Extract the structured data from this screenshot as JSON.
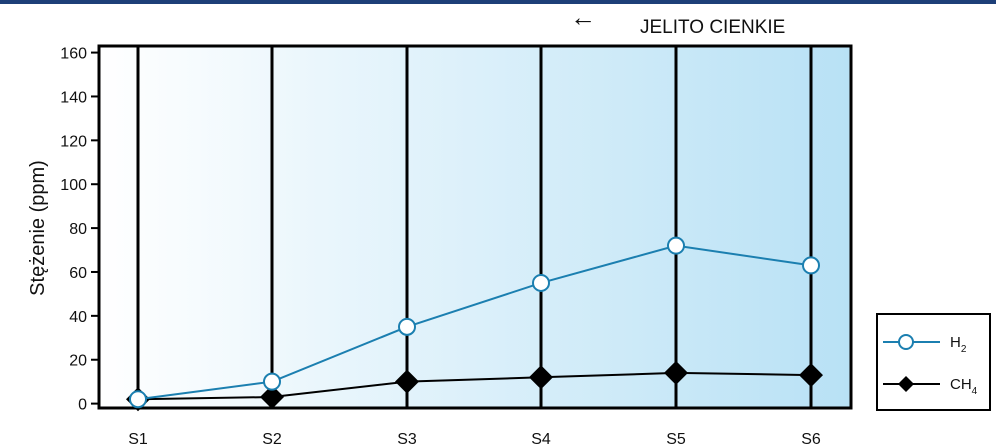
{
  "chart_data": {
    "type": "line",
    "title": "",
    "xlabel": "",
    "ylabel": "Stężenie (ppm)",
    "categories": [
      "S1",
      "S2",
      "S3",
      "S4",
      "S5",
      "S6"
    ],
    "yticks": [
      0,
      20,
      40,
      60,
      80,
      100,
      120,
      140,
      160
    ],
    "ylim": [
      -2,
      163
    ],
    "grid": "vertical lines at categories",
    "legend_position": "right",
    "annotation": {
      "arrow": "←",
      "text": "JELITO CIENKIE"
    },
    "series": [
      {
        "name": "H",
        "subscript": "2",
        "marker": "open-circle",
        "color": "#1b7fb0",
        "values": [
          2,
          10,
          35,
          55,
          72,
          63
        ]
      },
      {
        "name": "CH",
        "subscript": "4",
        "marker": "filled-diamond",
        "color": "#000000",
        "values": [
          2,
          3,
          10,
          12,
          14,
          13
        ]
      }
    ],
    "background_gradient": [
      "#ffffff",
      "#b8e1f5"
    ]
  }
}
